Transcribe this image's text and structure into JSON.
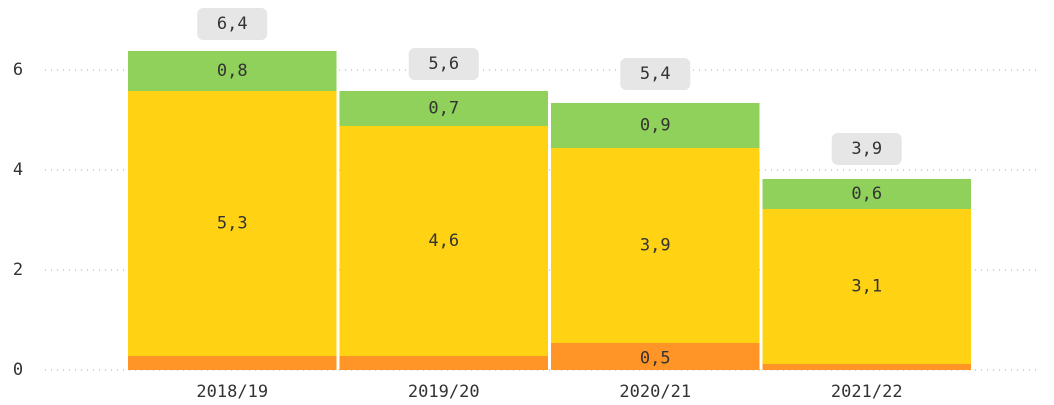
{
  "chart_data": {
    "type": "stacked_bar",
    "categories": [
      "2018/19",
      "2019/20",
      "2020/21",
      "2021/22"
    ],
    "series": [
      {
        "color": "#ff9526",
        "values": [
          0.28,
          0.28,
          0.54,
          0.12
        ],
        "value_labels": [
          null,
          null,
          "0,5",
          null
        ]
      },
      {
        "color": "#ffd314",
        "values": [
          5.3,
          4.6,
          3.9,
          3.1
        ],
        "value_labels": [
          "5,3",
          "4,6",
          "3,9",
          "3,1"
        ]
      },
      {
        "color": "#8fd15a",
        "values": [
          0.8,
          0.7,
          0.9,
          0.6
        ],
        "value_labels": [
          "0,8",
          "0,7",
          "0,9",
          "0,6"
        ]
      }
    ],
    "totals": [
      6.4,
      5.6,
      5.4,
      3.9
    ],
    "total_labels": [
      "6,4",
      "5,6",
      "5,4",
      "3,9"
    ],
    "ylim": [
      0,
      6.7
    ],
    "yticks": [
      0,
      2,
      4,
      6
    ],
    "grid": true
  }
}
